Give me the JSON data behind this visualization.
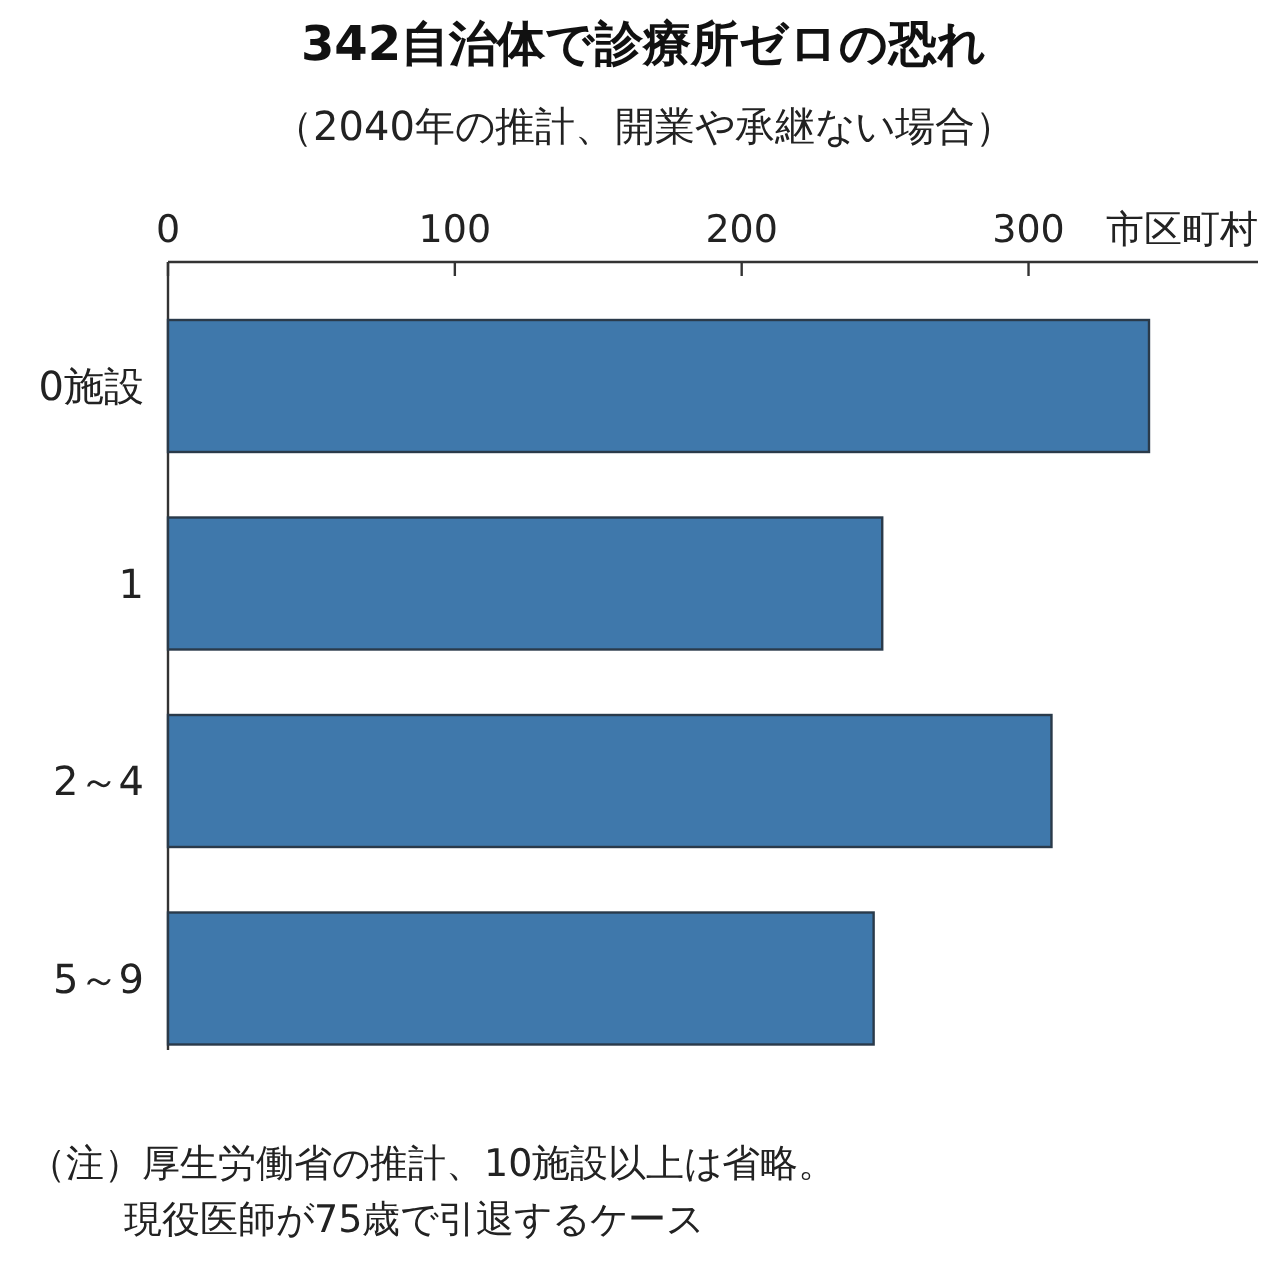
{
  "chart_data": {
    "type": "bar",
    "orientation": "horizontal",
    "title": "342自治体で診療所ゼロの恐れ",
    "subtitle": "（2040年の推計、開業や承継ない場合）",
    "xlabel": "市区町村",
    "categories": [
      "0施設",
      "1",
      "2～4",
      "5～9"
    ],
    "values": [
      342,
      249,
      308,
      246
    ],
    "color": "#3f78ab",
    "xlim": [
      0,
      380
    ],
    "xticks": [
      0,
      100,
      200,
      300
    ],
    "grid": false,
    "annotations": [
      "（注）厚生労働省の推計、10施設以上は省略。",
      "現役医師が75歳で引退するケース"
    ]
  }
}
